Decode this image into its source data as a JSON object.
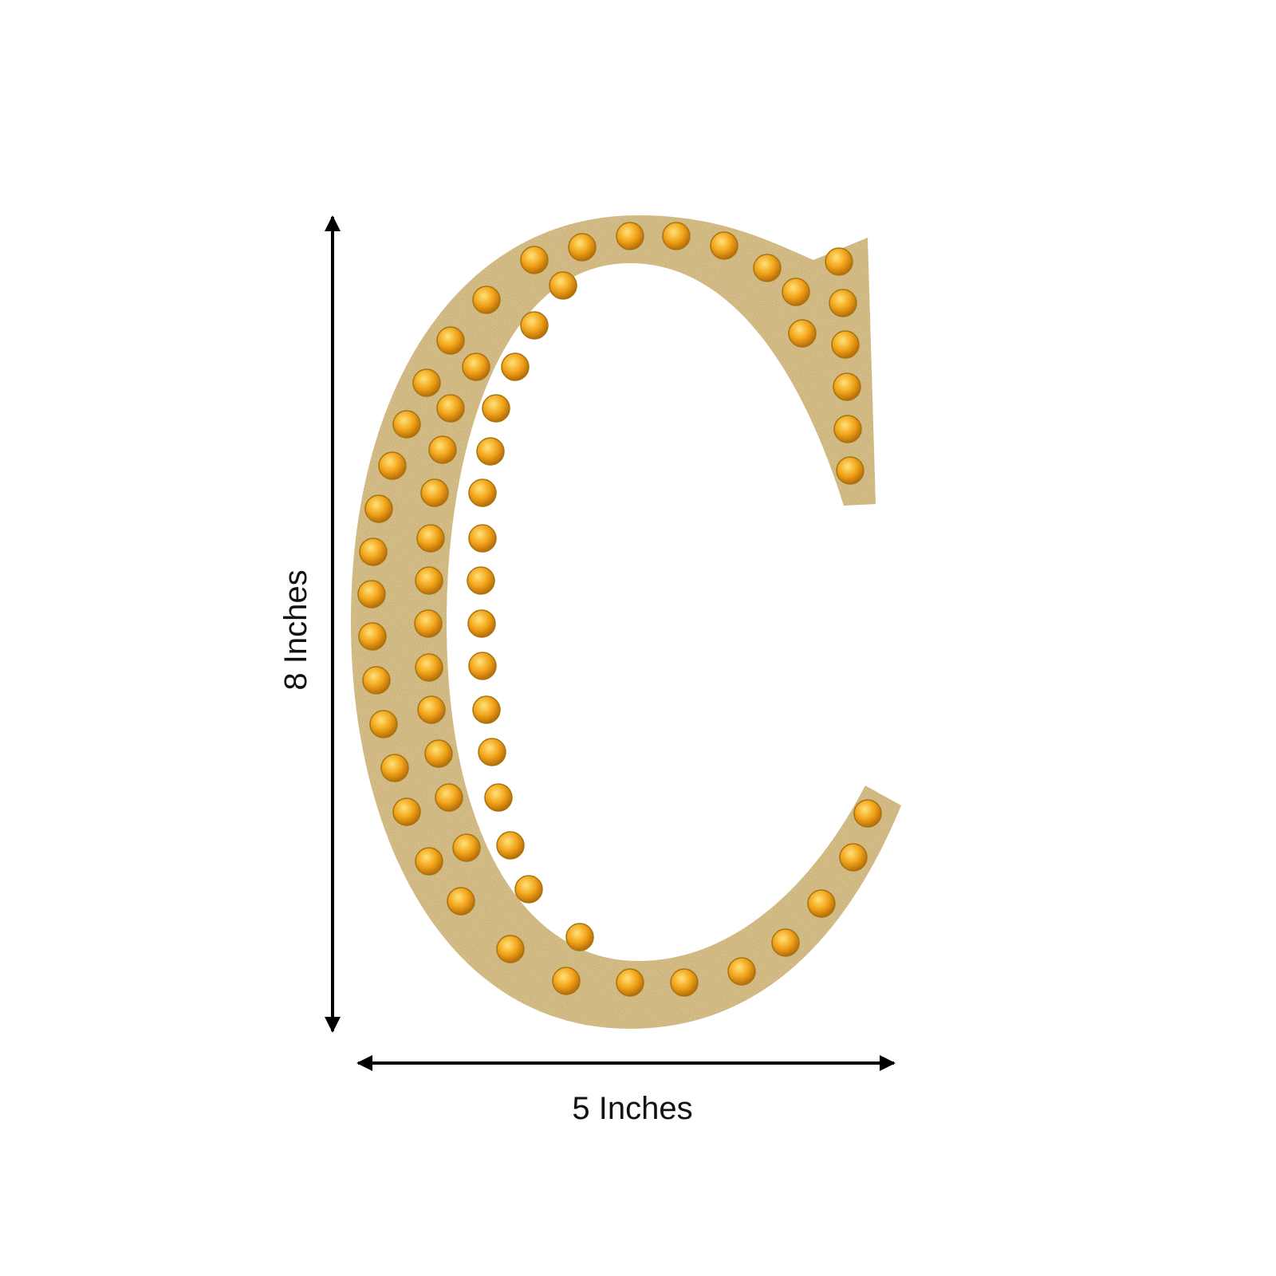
{
  "product": {
    "letter": "C",
    "height_label": "8 Inches",
    "width_label": "5 Inches",
    "colors": {
      "glitter": "#d9c08a",
      "gem": "#f0a81c",
      "arrow": "#000000"
    }
  }
}
